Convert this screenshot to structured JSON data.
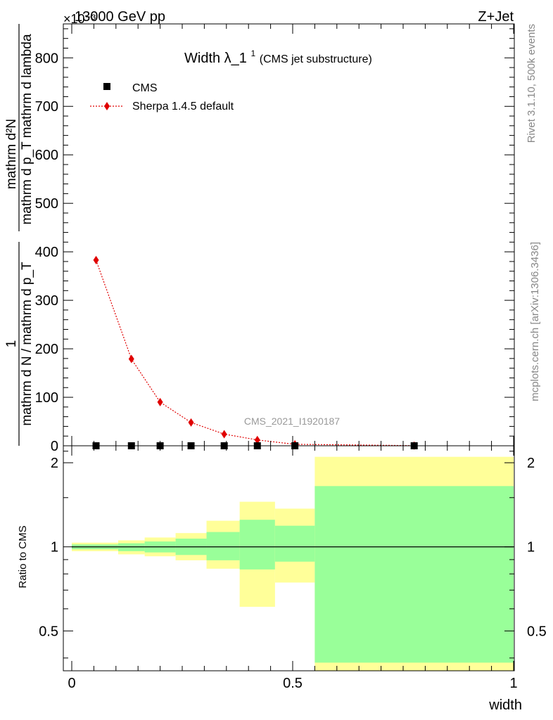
{
  "header": {
    "left": "13000 GeV pp",
    "right": "Z+Jet",
    "multiplier": "×10⁻³"
  },
  "side_labels": {
    "rivet": "Rivet 3.1.10,  500k events",
    "mcplots": "mcplots.cern.ch [arXiv:1306.3436]"
  },
  "main_plot": {
    "title_main": "Width λ_1",
    "title_sup": "1",
    "title_sub": " (CMS jet substructure)",
    "ylabel_numerator": "mathrm d²N",
    "ylabel_denominator": "mathrm d p_T mathrm d lambda",
    "ylabel_prefactor_num": "1",
    "ylabel_prefactor_den": "mathrm d N / mathrm d p_T",
    "watermark": "CMS_2021_I1920187",
    "yticks": [
      "0",
      "100",
      "200",
      "300",
      "400",
      "500",
      "600",
      "700",
      "800"
    ]
  },
  "ratio_plot": {
    "ylabel": "Ratio to CMS",
    "yticks": [
      "0.5",
      "1",
      "2"
    ],
    "xticks": [
      "0",
      "0.5",
      "1"
    ],
    "xlabel": "width"
  },
  "legend": {
    "items": [
      {
        "label": "CMS",
        "marker": "square",
        "color": "#000000"
      },
      {
        "label": "Sherpa 1.4.5 default",
        "marker": "diamond",
        "color": "#e00000"
      }
    ]
  },
  "chart_data": {
    "type": "line",
    "x_unit_range": [
      0,
      1
    ],
    "y_scale_factor": 0.001,
    "ylim": [
      0,
      870
    ],
    "series": [
      {
        "name": "CMS",
        "x": [
          0.055,
          0.135,
          0.2,
          0.27,
          0.345,
          0.42,
          0.505,
          0.775
        ],
        "y": [
          0,
          0,
          0,
          0,
          0,
          0,
          0,
          0
        ]
      },
      {
        "name": "Sherpa 1.4.5 default",
        "x": [
          0.055,
          0.135,
          0.2,
          0.27,
          0.345,
          0.42,
          0.505,
          0.775
        ],
        "y": [
          383,
          179,
          90,
          48,
          24,
          12,
          3,
          0.3
        ]
      }
    ],
    "ratio": {
      "ylim": [
        0.36,
        2.3
      ],
      "scale": "log",
      "reference_line": 1,
      "bands": [
        {
          "x0": 0.0,
          "x1": 0.105,
          "green": [
            0.98,
            1.02
          ],
          "yellow": [
            0.965,
            1.035
          ]
        },
        {
          "x0": 0.105,
          "x1": 0.165,
          "green": [
            0.965,
            1.03
          ],
          "yellow": [
            0.94,
            1.055
          ]
        },
        {
          "x0": 0.165,
          "x1": 0.235,
          "green": [
            0.955,
            1.045
          ],
          "yellow": [
            0.925,
            1.08
          ]
        },
        {
          "x0": 0.235,
          "x1": 0.305,
          "green": [
            0.935,
            1.07
          ],
          "yellow": [
            0.895,
            1.12
          ]
        },
        {
          "x0": 0.305,
          "x1": 0.38,
          "green": [
            0.895,
            1.13
          ],
          "yellow": [
            0.835,
            1.24
          ]
        },
        {
          "x0": 0.38,
          "x1": 0.46,
          "green": [
            0.83,
            1.25
          ],
          "yellow": [
            0.61,
            1.45
          ]
        },
        {
          "x0": 0.46,
          "x1": 0.55,
          "green": [
            0.885,
            1.19
          ],
          "yellow": [
            0.745,
            1.37
          ]
        },
        {
          "x0": 0.55,
          "x1": 1.0,
          "green": [
            0.385,
            1.65
          ],
          "yellow": [
            0.36,
            2.1
          ]
        }
      ],
      "colors": {
        "green": "#99ff99",
        "yellow": "#ffff99"
      }
    }
  }
}
